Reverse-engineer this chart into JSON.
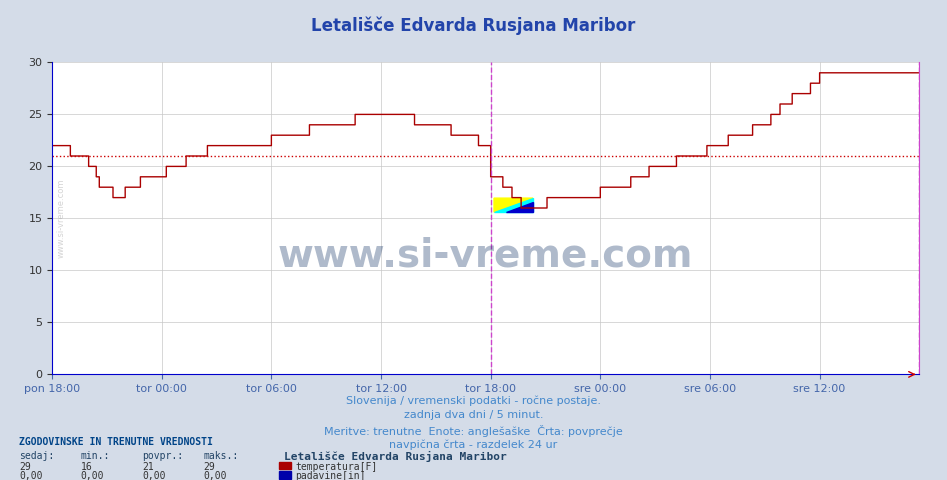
{
  "title": "Letališče Edvarda Rusjana Maribor",
  "bg_color": "#d4dce8",
  "plot_bg_color": "#ffffff",
  "grid_color": "#c8c8c8",
  "temp_line_color": "#aa0000",
  "avg_line_color": "#cc0000",
  "avg_value": 21,
  "ylim": [
    0,
    30
  ],
  "yticks": [
    0,
    5,
    10,
    15,
    20,
    25,
    30
  ],
  "xlabel_color": "#4466aa",
  "title_color": "#2244aa",
  "footer_text_color": "#4488cc",
  "xtick_labels": [
    "pon 18:00",
    "tor 00:00",
    "tor 06:00",
    "tor 12:00",
    "tor 18:00",
    "sre 00:00",
    "sre 06:00",
    "sre 12:00"
  ],
  "xtick_positions": [
    0,
    72,
    144,
    216,
    288,
    360,
    432,
    504
  ],
  "total_points": 576,
  "vline_pos": 288,
  "vline_color": "#cc44cc",
  "watermark_text": "www.si-vreme.com",
  "footer_line1": "Slovenija / vremenski podatki - ročne postaje.",
  "footer_line2": "zadnja dva dni / 5 minut.",
  "footer_line3": "Meritve: trenutne  Enote: anglešaške  Črta: povprečje",
  "footer_line4": "navpična črta - razdelek 24 ur",
  "legend_title": "Letališče Edvarda Rusjana Maribor",
  "stat_label1": "ZGODOVINSKE IN TRENUTNE VREDNOSTI",
  "stat_headers": [
    "sedaj:",
    "min.:",
    "povpr.:",
    "maks.:"
  ],
  "stat_values_temp": [
    29,
    16,
    21,
    29
  ],
  "stat_values_rain": [
    "0,00",
    "0,00",
    "0,00",
    "0,00"
  ],
  "legend_temp_label": "temperatura[F]",
  "legend_rain_label": "padavine[in]",
  "temp_data": [
    22,
    22,
    22,
    22,
    22,
    22,
    22,
    22,
    22,
    22,
    22,
    22,
    21,
    21,
    21,
    21,
    21,
    21,
    21,
    21,
    21,
    21,
    21,
    21,
    20,
    20,
    20,
    20,
    20,
    19,
    19,
    18,
    18,
    18,
    18,
    18,
    18,
    18,
    18,
    18,
    17,
    17,
    17,
    17,
    17,
    17,
    17,
    17,
    18,
    18,
    18,
    18,
    18,
    18,
    18,
    18,
    18,
    18,
    19,
    19,
    19,
    19,
    19,
    19,
    19,
    19,
    19,
    19,
    19,
    19,
    19,
    19,
    19,
    19,
    19,
    20,
    20,
    20,
    20,
    20,
    20,
    20,
    20,
    20,
    20,
    20,
    20,
    20,
    21,
    21,
    21,
    21,
    21,
    21,
    21,
    21,
    21,
    21,
    21,
    21,
    21,
    21,
    22,
    22,
    22,
    22,
    22,
    22,
    22,
    22,
    22,
    22,
    22,
    22,
    22,
    22,
    22,
    22,
    22,
    22,
    22,
    22,
    22,
    22,
    22,
    22,
    22,
    22,
    22,
    22,
    22,
    22,
    22,
    22,
    22,
    22,
    22,
    22,
    22,
    22,
    22,
    22,
    22,
    22,
    23,
    23,
    23,
    23,
    23,
    23,
    23,
    23,
    23,
    23,
    23,
    23,
    23,
    23,
    23,
    23,
    23,
    23,
    23,
    23,
    23,
    23,
    23,
    23,
    23,
    24,
    24,
    24,
    24,
    24,
    24,
    24,
    24,
    24,
    24,
    24,
    24,
    24,
    24,
    24,
    24,
    24,
    24,
    24,
    24,
    24,
    24,
    24,
    24,
    24,
    24,
    24,
    24,
    24,
    24,
    25,
    25,
    25,
    25,
    25,
    25,
    25,
    25,
    25,
    25,
    25,
    25,
    25,
    25,
    25,
    25,
    25,
    25,
    25,
    25,
    25,
    25,
    25,
    25,
    25,
    25,
    25,
    25,
    25,
    25,
    25,
    25,
    25,
    25,
    25,
    25,
    25,
    25,
    25,
    24,
    24,
    24,
    24,
    24,
    24,
    24,
    24,
    24,
    24,
    24,
    24,
    24,
    24,
    24,
    24,
    24,
    24,
    24,
    24,
    24,
    24,
    24,
    24,
    23,
    23,
    23,
    23,
    23,
    23,
    23,
    23,
    23,
    23,
    23,
    23,
    23,
    23,
    23,
    23,
    23,
    23,
    22,
    22,
    22,
    22,
    22,
    22,
    22,
    22,
    19,
    19,
    19,
    19,
    19,
    19,
    19,
    19,
    18,
    18,
    18,
    18,
    18,
    18,
    17,
    17,
    17,
    17,
    17,
    17,
    16,
    16,
    16,
    16,
    16,
    16,
    16,
    16,
    16,
    16,
    16,
    16,
    16,
    16,
    16,
    16,
    16,
    17,
    17,
    17,
    17,
    17,
    17,
    17,
    17,
    17,
    17,
    17,
    17,
    17,
    17,
    17,
    17,
    17,
    17,
    17,
    17,
    17,
    17,
    17,
    17,
    17,
    17,
    17,
    17,
    17,
    17,
    17,
    17,
    17,
    17,
    17,
    18,
    18,
    18,
    18,
    18,
    18,
    18,
    18,
    18,
    18,
    18,
    18,
    18,
    18,
    18,
    18,
    18,
    18,
    18,
    18,
    19,
    19,
    19,
    19,
    19,
    19,
    19,
    19,
    19,
    19,
    19,
    19,
    20,
    20,
    20,
    20,
    20,
    20,
    20,
    20,
    20,
    20,
    20,
    20,
    20,
    20,
    20,
    20,
    20,
    20,
    21,
    21,
    21,
    21,
    21,
    21,
    21,
    21,
    21,
    21,
    21,
    21,
    21,
    21,
    21,
    21,
    21,
    21,
    21,
    21,
    22,
    22,
    22,
    22,
    22,
    22,
    22,
    22,
    22,
    22,
    22,
    22,
    22,
    22,
    23,
    23,
    23,
    23,
    23,
    23,
    23,
    23,
    23,
    23,
    23,
    23,
    23,
    23,
    23,
    23,
    24,
    24,
    24,
    24,
    24,
    24,
    24,
    24,
    24,
    24,
    24,
    24,
    25,
    25,
    25,
    25,
    25,
    25,
    26,
    26,
    26,
    26,
    26,
    26,
    26,
    26,
    27,
    27,
    27,
    27,
    27,
    27,
    27,
    27,
    27,
    27,
    27,
    27,
    28,
    28,
    28,
    28,
    28,
    28,
    29,
    29,
    29,
    29,
    29,
    29,
    29,
    29,
    29,
    29,
    29,
    29,
    29,
    29,
    29,
    29,
    29,
    29,
    29,
    29,
    29,
    29,
    29,
    29,
    29,
    29,
    29,
    29,
    29,
    29,
    29,
    29,
    29,
    29,
    29,
    29,
    29,
    29,
    29,
    29,
    29,
    29,
    29,
    29,
    29,
    29,
    29,
    29,
    29,
    29,
    29,
    29,
    29,
    29,
    29,
    29,
    29,
    29,
    29,
    29,
    29,
    29,
    29,
    29,
    29,
    29
  ]
}
